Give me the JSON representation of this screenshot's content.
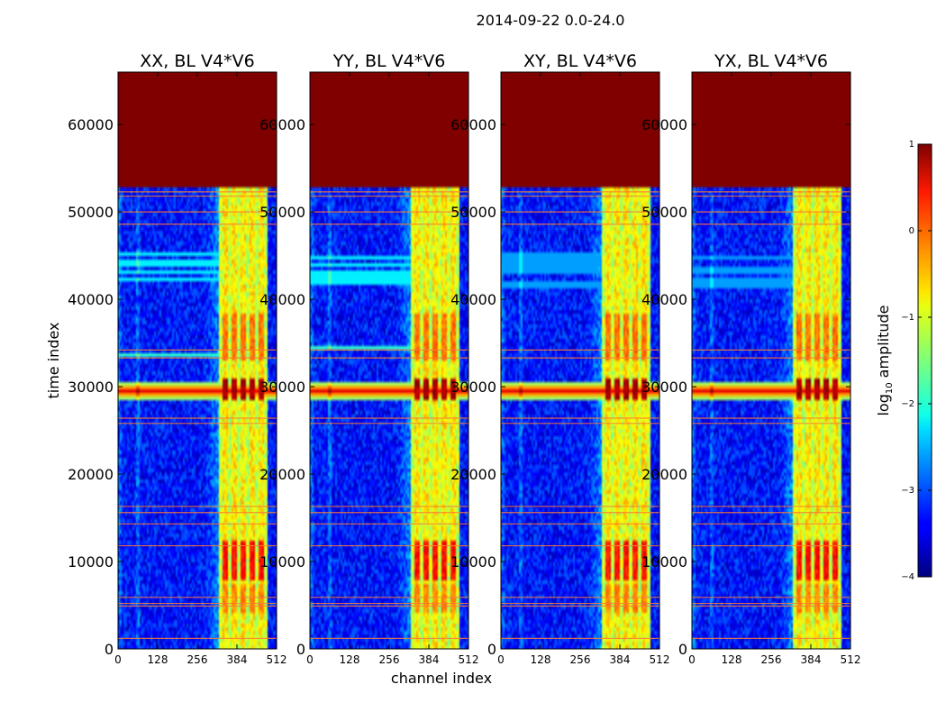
{
  "figure": {
    "suptitle": "2014-09-22 0.0-24.0",
    "xlabel": "channel index",
    "ylabel": "time index",
    "colorbar": {
      "label_prefix": "log",
      "label_sub": "10",
      "label_suffix": " amplitude",
      "range": [
        -4,
        1
      ],
      "ticks": [
        -4,
        -3,
        -2,
        -1,
        0,
        1
      ],
      "tick_labels": [
        "−4",
        "−3",
        "−2",
        "−1",
        "0",
        "1"
      ],
      "colormap": "jet"
    }
  },
  "chart_data": [
    {
      "type": "heatmap",
      "title": "XX, BL V4*V6",
      "xlabel": "channel index",
      "ylabel": "time index",
      "xlim": [
        0,
        512
      ],
      "ylim": [
        0,
        66000
      ],
      "xticks": [
        0,
        128,
        256,
        384,
        512
      ],
      "yticks": [
        0,
        10000,
        20000,
        30000,
        40000,
        50000,
        60000
      ],
      "z_units": "log10 amplitude",
      "background_level": -3.3,
      "saturated_time_range": [
        52800,
        66000
      ],
      "bright_channel_band": [
        325,
        480
      ],
      "bright_band_level": -0.8,
      "hot_channels": [
        345,
        375,
        405,
        435,
        462
      ],
      "hot_time_bands": [
        [
          28500,
          30800,
          0.8
        ],
        [
          8000,
          12500,
          0.3
        ],
        [
          33000,
          38500,
          -0.2
        ],
        [
          4000,
          7500,
          -0.3
        ]
      ],
      "horizontal_stripe_bands": [
        [
          41200,
          45200,
          -2.2
        ],
        [
          33300,
          34500,
          -1.9
        ]
      ],
      "flagged_rows": [
        52300,
        51800,
        50000,
        48600,
        34200,
        33300,
        26400,
        25800,
        16300,
        15600,
        14300,
        11800,
        5900,
        5200,
        4900,
        1200
      ],
      "broadband_row": 29500,
      "broadband_row_level": 0.5
    },
    {
      "type": "heatmap",
      "title": "YY, BL V4*V6",
      "xlabel": "channel index",
      "ylabel": "time index",
      "xlim": [
        0,
        512
      ],
      "ylim": [
        0,
        66000
      ],
      "xticks": [
        0,
        128,
        256,
        384,
        512
      ],
      "yticks": [
        0,
        10000,
        20000,
        30000,
        40000,
        50000,
        60000
      ],
      "z_units": "log10 amplitude",
      "background_level": -3.3,
      "saturated_time_range": [
        52800,
        66000
      ],
      "bright_channel_band": [
        325,
        480
      ],
      "bright_band_level": -0.8,
      "hot_channels": [
        345,
        375,
        405,
        435,
        462
      ],
      "hot_time_bands": [
        [
          28500,
          30800,
          0.8
        ],
        [
          8000,
          12500,
          0.3
        ],
        [
          33000,
          38500,
          -0.2
        ],
        [
          4000,
          7500,
          -0.3
        ]
      ],
      "horizontal_stripe_bands": [
        [
          41200,
          45200,
          -2.2
        ],
        [
          33300,
          34500,
          -1.9
        ]
      ],
      "flagged_rows": [
        52300,
        51800,
        50000,
        48600,
        34200,
        33300,
        26400,
        25800,
        16300,
        15600,
        14300,
        11800,
        5900,
        5200,
        4900,
        1200
      ],
      "broadband_row": 29500,
      "broadband_row_level": 0.5
    },
    {
      "type": "heatmap",
      "title": "XY, BL V4*V6",
      "xlabel": "channel index",
      "ylabel": "time index",
      "xlim": [
        0,
        512
      ],
      "ylim": [
        0,
        66000
      ],
      "xticks": [
        0,
        128,
        256,
        384,
        512
      ],
      "yticks": [
        0,
        10000,
        20000,
        30000,
        40000,
        50000,
        60000
      ],
      "z_units": "log10 amplitude",
      "background_level": -3.3,
      "saturated_time_range": [
        52800,
        66000
      ],
      "bright_channel_band": [
        325,
        480
      ],
      "bright_band_level": -0.8,
      "hot_channels": [
        345,
        375,
        405,
        435,
        462
      ],
      "hot_time_bands": [
        [
          28500,
          30800,
          0.8
        ],
        [
          8000,
          12500,
          0.3
        ],
        [
          33000,
          38500,
          -0.2
        ],
        [
          4000,
          7500,
          -0.3
        ]
      ],
      "horizontal_stripe_bands": [
        [
          41200,
          45200,
          -2.6
        ]
      ],
      "flagged_rows": [
        52300,
        51800,
        50000,
        48600,
        34200,
        33300,
        26400,
        25800,
        16300,
        15600,
        14300,
        11800,
        5900,
        5200,
        4900,
        1200
      ],
      "broadband_row": 29500,
      "broadband_row_level": 0.5
    },
    {
      "type": "heatmap",
      "title": "YX, BL V4*V6",
      "xlabel": "channel index",
      "ylabel": "time index",
      "xlim": [
        0,
        512
      ],
      "ylim": [
        0,
        66000
      ],
      "xticks": [
        0,
        128,
        256,
        384,
        512
      ],
      "yticks": [
        0,
        10000,
        20000,
        30000,
        40000,
        50000,
        60000
      ],
      "z_units": "log10 amplitude",
      "background_level": -3.3,
      "saturated_time_range": [
        52800,
        66000
      ],
      "bright_channel_band": [
        325,
        480
      ],
      "bright_band_level": -0.8,
      "hot_channels": [
        345,
        375,
        405,
        435,
        462
      ],
      "hot_time_bands": [
        [
          28500,
          30800,
          0.8
        ],
        [
          8000,
          12500,
          0.3
        ],
        [
          33000,
          38500,
          -0.2
        ],
        [
          4000,
          7500,
          -0.3
        ]
      ],
      "horizontal_stripe_bands": [
        [
          41200,
          45200,
          -2.6
        ]
      ],
      "flagged_rows": [
        52300,
        51800,
        50000,
        48600,
        34200,
        33300,
        26400,
        25800,
        16300,
        15600,
        14300,
        11800,
        5900,
        5200,
        4900,
        1200
      ],
      "broadband_row": 29500,
      "broadband_row_level": 0.5
    }
  ]
}
